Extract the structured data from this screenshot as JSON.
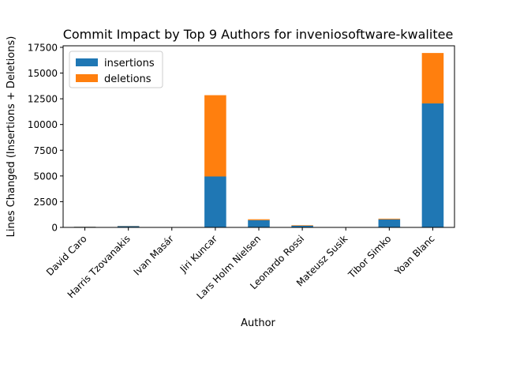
{
  "chart_data": {
    "type": "bar",
    "stacked": true,
    "title": "Commit Impact by Top 9 Authors for inveniosoftware-kwalitee",
    "xlabel": "Author",
    "ylabel": "Lines Changed (Insertions + Deletions)",
    "categories": [
      "David Caro",
      "Harris Tzovanakis",
      "Ivan Masár",
      "Jiri Kuncar",
      "Lars Holm Nielsen",
      "Leonardo Rossi",
      "Mateusz Susik",
      "Tibor Simko",
      "Yoan Blanc"
    ],
    "series": [
      {
        "name": "insertions",
        "color": "#1f77b4",
        "values": [
          60,
          130,
          5,
          4950,
          700,
          170,
          5,
          780,
          12050
        ]
      },
      {
        "name": "deletions",
        "color": "#ff7f0e",
        "values": [
          10,
          20,
          3,
          7900,
          90,
          50,
          3,
          70,
          4900
        ]
      }
    ],
    "ylim": [
      0,
      17650
    ],
    "yticks": [
      0,
      2500,
      5000,
      7500,
      10000,
      12500,
      15000,
      17500
    ],
    "ytick_labels": [
      "0",
      "2500",
      "5000",
      "7500",
      "10000",
      "12500",
      "15000",
      "17500"
    ],
    "legend_position": "top-left",
    "grid": false
  }
}
